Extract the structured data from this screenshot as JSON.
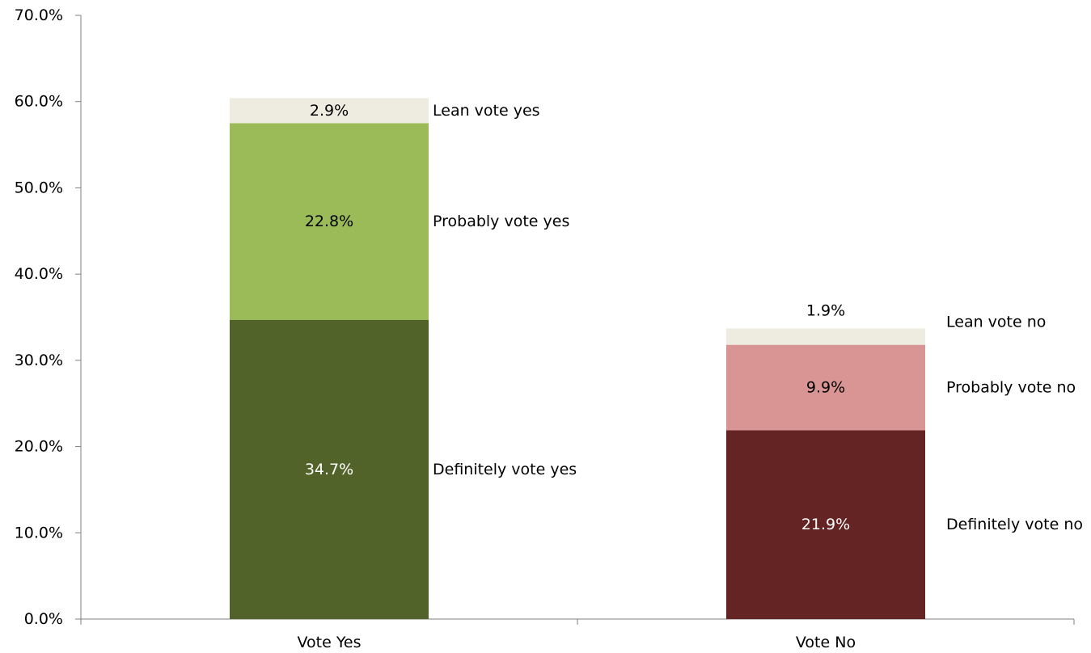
{
  "chart_data": {
    "type": "bar",
    "stacked": true,
    "categories": [
      "Vote Yes",
      "Vote No"
    ],
    "ylim": [
      0,
      70
    ],
    "yticks": [
      0,
      10,
      20,
      30,
      40,
      50,
      60,
      70
    ],
    "ytick_labels": [
      "0.0%",
      "10.0%",
      "20.0%",
      "30.0%",
      "40.0%",
      "50.0%",
      "60.0%",
      "70.0%"
    ],
    "grid": false,
    "legend": "none",
    "bars": [
      {
        "category": "Vote Yes",
        "segments": [
          {
            "name": "Definitely vote yes",
            "value": 34.7,
            "label": "34.7%",
            "color": "#516328",
            "label_color": "#ffffff"
          },
          {
            "name": "Probably vote yes",
            "value": 22.8,
            "label": "22.8%",
            "color": "#9bbb59",
            "label_color": "#000000"
          },
          {
            "name": "Lean vote yes",
            "value": 2.9,
            "label": "2.9%",
            "color": "#eeece1",
            "label_color": "#000000"
          }
        ]
      },
      {
        "category": "Vote No",
        "segments": [
          {
            "name": "Definitely vote no",
            "value": 21.9,
            "label": "21.9%",
            "color": "#632423",
            "label_color": "#ffffff"
          },
          {
            "name": "Probably vote no",
            "value": 9.9,
            "label": "9.9%",
            "color": "#d99594",
            "label_color": "#000000"
          },
          {
            "name": "Lean vote no",
            "value": 1.9,
            "label": "1.9%",
            "color": "#eeece1",
            "label_color": "#000000"
          }
        ]
      }
    ]
  }
}
